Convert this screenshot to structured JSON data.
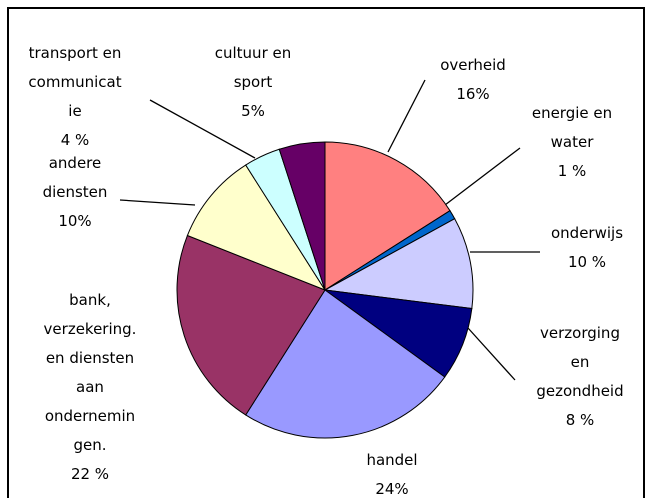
{
  "chart_data": {
    "type": "pie",
    "categories": [
      "overheid",
      "energie en\nwater",
      "onderwijs",
      "verzorging\nen\ngezondheid",
      "handel",
      "bank,\nverzekering.\nen diensten\naan\nondernemin\ngen.",
      "andere\ndiensten",
      "transport en\ncommunicat\nie",
      "cultuur en\nsport"
    ],
    "values": [
      16,
      1,
      10,
      8,
      24,
      22,
      10,
      4,
      5
    ],
    "value_labels": [
      "16%",
      "1 %",
      "10 %",
      "8 %",
      "24%",
      "22 %",
      "10%",
      "4 %",
      "5%"
    ],
    "colors": [
      "#ff8080",
      "#0066cc",
      "#ccccff",
      "#000080",
      "#9999ff",
      "#993366",
      "#ffffcc",
      "#ccffff",
      "#660066"
    ]
  }
}
